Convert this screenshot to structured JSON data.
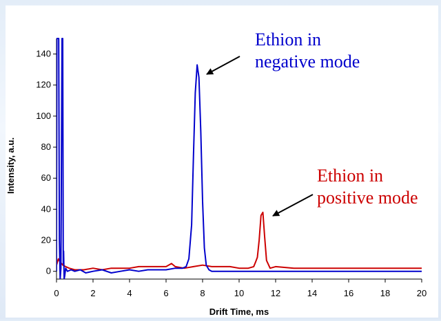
{
  "chart_data": {
    "type": "line",
    "title": "",
    "xlabel": "Drift Time, ms",
    "ylabel": "Intensity, a.u.",
    "xlim": [
      0,
      20
    ],
    "ylim": [
      -5,
      150
    ],
    "xticks": [
      0,
      2,
      4,
      6,
      8,
      10,
      12,
      14,
      16,
      18,
      20
    ],
    "yticks": [
      0,
      20,
      40,
      60,
      80,
      100,
      120,
      140
    ],
    "grid": false,
    "series": [
      {
        "name": "Ethion in negative mode",
        "color": "#0000cc",
        "x": [
          0.0,
          0.02,
          0.05,
          0.12,
          0.16,
          0.2,
          0.24,
          0.3,
          0.34,
          0.37,
          0.39,
          0.42,
          0.45,
          0.5,
          0.6,
          0.8,
          1.0,
          1.3,
          1.6,
          2.0,
          2.5,
          3.0,
          3.5,
          4.0,
          4.5,
          5.0,
          5.5,
          6.0,
          6.5,
          6.9,
          7.1,
          7.25,
          7.4,
          7.5,
          7.6,
          7.7,
          7.8,
          7.9,
          8.0,
          8.1,
          8.2,
          8.35,
          8.5,
          9.0,
          9.5,
          10.0,
          10.5,
          11.0,
          11.5,
          12.0,
          13.0,
          14.0,
          15.0,
          16.0,
          17.0,
          18.0,
          19.0,
          20.0
        ],
        "y": [
          0,
          150,
          150,
          150,
          20,
          -5,
          2,
          150,
          150,
          5,
          13,
          -5,
          -3,
          2,
          0,
          1,
          0,
          1,
          -1,
          0,
          1,
          -1,
          0,
          1,
          0,
          1,
          1,
          1,
          2,
          2,
          3,
          8,
          30,
          75,
          115,
          133,
          125,
          90,
          45,
          15,
          4,
          1,
          0,
          0,
          0,
          0,
          0,
          0,
          0,
          0,
          0,
          0,
          0,
          0,
          0,
          0,
          0,
          0
        ]
      },
      {
        "name": "Ethion in positive mode",
        "color": "#cc0000",
        "x": [
          0.0,
          0.1,
          0.2,
          0.35,
          0.5,
          0.7,
          1.0,
          1.5,
          2.0,
          2.5,
          3.0,
          3.5,
          4.0,
          4.5,
          5.0,
          5.5,
          6.0,
          6.3,
          6.5,
          7.0,
          7.5,
          8.0,
          8.5,
          9.0,
          9.5,
          10.0,
          10.5,
          10.8,
          10.9,
          11.0,
          11.1,
          11.2,
          11.3,
          11.4,
          11.5,
          11.7,
          12.0,
          13.0,
          14.0,
          15.0,
          16.0,
          17.0,
          18.0,
          19.0,
          20.0
        ],
        "y": [
          4,
          8,
          6,
          4,
          3,
          2,
          1,
          1,
          2,
          1,
          2,
          2,
          2,
          3,
          3,
          3,
          3,
          5,
          3,
          2,
          3,
          4,
          3,
          3,
          3,
          2,
          2,
          3,
          6,
          9,
          20,
          36,
          38,
          22,
          7,
          2,
          3,
          2,
          2,
          2,
          2,
          2,
          2,
          2,
          2
        ]
      }
    ],
    "annotations": [
      {
        "line1": "Ethion in",
        "line2": "negative mode",
        "color": "#0000cc",
        "points_to": [
          7.7,
          133
        ]
      },
      {
        "line1": "Ethion in",
        "line2": "positive mode",
        "color": "#cc0000",
        "points_to": [
          11.3,
          38
        ]
      }
    ]
  }
}
